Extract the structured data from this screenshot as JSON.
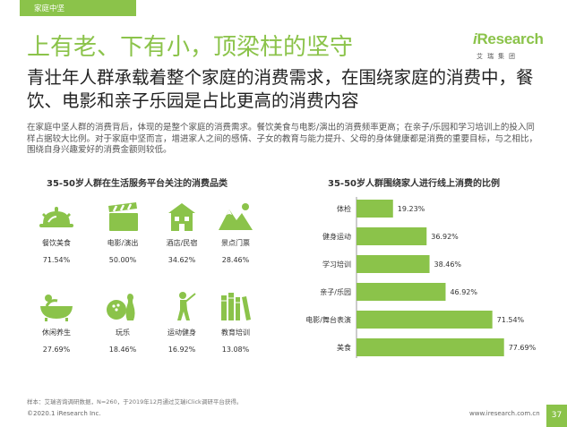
{
  "header": {
    "section_tag": "家庭中坚"
  },
  "logo": {
    "brand_i": "i",
    "brand_rest": "Research",
    "brand_cn": "艾瑞集团"
  },
  "title": "上有老、下有小，顶梁柱的坚守",
  "subtitle": "青壮年人群承载着整个家庭的消费需求，在围绕家庭的消费中，餐饮、电影和亲子乐园是占比更高的消费内容",
  "description": "在家庭中坚人群的消费背后，体现的是整个家庭的消费需求。餐饮美食与电影/演出的消费频率更高；在亲子/乐园和学习培训上的投入同样占据较大比例。对于家庭中坚而言，增进家人之间的感情、子女的教育与能力提升、父母的身体健康都是消费的重要目标，与之相比，围绕自身兴趣爱好的消费金额则较低。",
  "left_panel": {
    "title": "35-50岁人群在生活服务平台关注的消费品类",
    "categories": [
      {
        "label": "餐饮美食",
        "percent": "71.54%",
        "icon": "food-icon"
      },
      {
        "label": "电影/演出",
        "percent": "50.00%",
        "icon": "clapperboard-icon"
      },
      {
        "label": "酒店/民宿",
        "percent": "34.62%",
        "icon": "hotel-icon"
      },
      {
        "label": "景点门票",
        "percent": "28.46%",
        "icon": "mountain-icon"
      },
      {
        "label": "休闲养生",
        "percent": "27.69%",
        "icon": "bathtub-icon"
      },
      {
        "label": "玩乐",
        "percent": "18.46%",
        "icon": "bowling-icon"
      },
      {
        "label": "运动健身",
        "percent": "16.92%",
        "icon": "golfer-icon"
      },
      {
        "label": "教育培训",
        "percent": "13.08%",
        "icon": "books-icon"
      }
    ]
  },
  "chart_data": {
    "type": "bar",
    "orientation": "horizontal",
    "title": "35-50岁人群围绕家人进行线上消费的比例",
    "categories": [
      "体检",
      "健身运动",
      "学习培训",
      "亲子/乐园",
      "电影/舞台表演",
      "美食"
    ],
    "values": [
      19.23,
      36.92,
      38.46,
      46.92,
      71.54,
      77.69
    ],
    "value_labels": [
      "19.23%",
      "36.92%",
      "38.46%",
      "46.92%",
      "71.54%",
      "77.69%"
    ],
    "xlim": [
      0,
      100
    ],
    "grid": false,
    "color": "#8bc34a"
  },
  "footer": {
    "note": "样本：艾瑞咨询调研数据，N=260，于2019年12月通过艾瑞iClick调研平台获得。",
    "copyright": "©2020.1 iResearch Inc.",
    "url": "www.iresearch.com.cn",
    "page_number": "37"
  }
}
